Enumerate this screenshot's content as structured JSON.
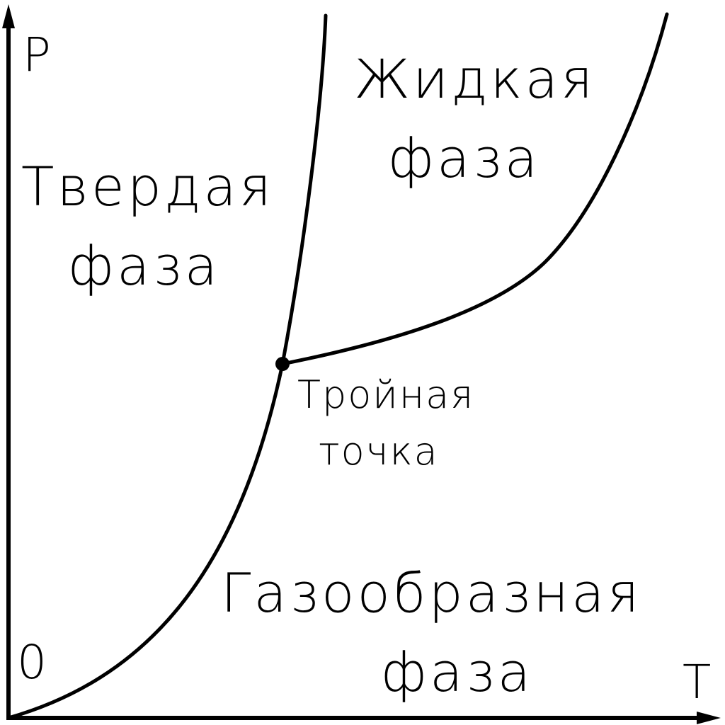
{
  "axes": {
    "y_label": "P",
    "x_label": "T",
    "origin_label": "0"
  },
  "phases": {
    "solid": {
      "line1": "Твердая",
      "line2": "фаза"
    },
    "liquid": {
      "line1": "Жидкая",
      "line2": "фаза"
    },
    "gas": {
      "line1": "Газообразная",
      "line2": "фаза"
    }
  },
  "triple_point": {
    "line1": "Тройная",
    "line2": "точка"
  },
  "colors": {
    "ink": "#000000",
    "background": "#ffffff"
  }
}
